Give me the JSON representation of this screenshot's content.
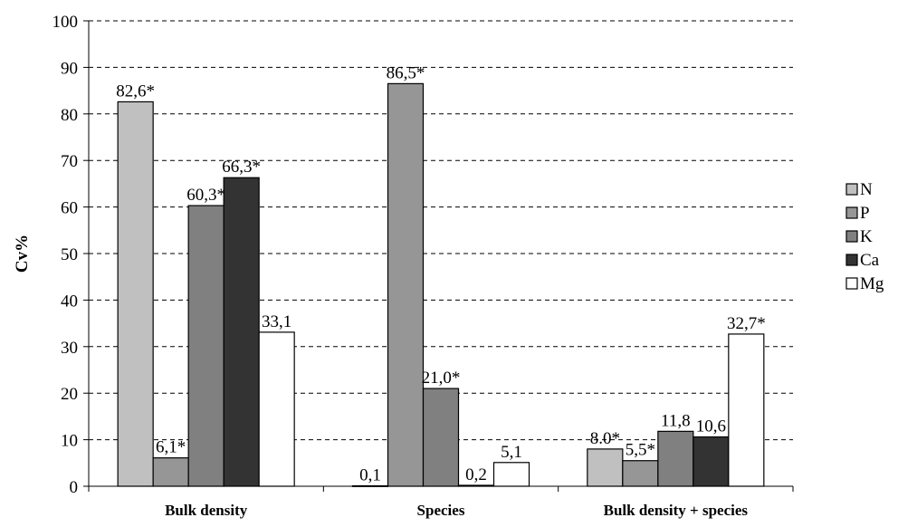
{
  "chart_data": {
    "type": "bar",
    "title": "",
    "xlabel": "",
    "ylabel": "Cv%",
    "ylim": [
      0,
      100
    ],
    "yticks": [
      0,
      10,
      20,
      30,
      40,
      50,
      60,
      70,
      80,
      90,
      100
    ],
    "ytick_labels": [
      "0",
      "10",
      "20",
      "30",
      "40",
      "50",
      "60",
      "70",
      "80",
      "90",
      "100"
    ],
    "grid": "horizontal dashed",
    "legend_position": "right",
    "categories": [
      "Bulk density",
      "Species",
      "Bulk density + species"
    ],
    "series": [
      {
        "name": "N",
        "color": "#c0c0c0",
        "values": [
          82.6,
          0.1,
          8.0
        ],
        "labels": [
          "82,6*",
          "0,1",
          "8.0*"
        ]
      },
      {
        "name": "P",
        "color": "#969696",
        "values": [
          6.1,
          86.5,
          5.5
        ],
        "labels": [
          "6,1*",
          "86,5*",
          "5,5*"
        ]
      },
      {
        "name": "K",
        "color": "#808080",
        "values": [
          60.3,
          21.0,
          11.8
        ],
        "labels": [
          "60,3*",
          "21,0*",
          "11,8"
        ]
      },
      {
        "name": "Ca",
        "color": "#333333",
        "values": [
          66.3,
          0.2,
          10.6
        ],
        "labels": [
          "66,3*",
          "0,2",
          "10,6"
        ]
      },
      {
        "name": "Mg",
        "color": "#ffffff",
        "values": [
          33.1,
          5.1,
          32.7
        ],
        "labels": [
          "33,1",
          "5,1",
          "32,7*"
        ]
      }
    ]
  }
}
